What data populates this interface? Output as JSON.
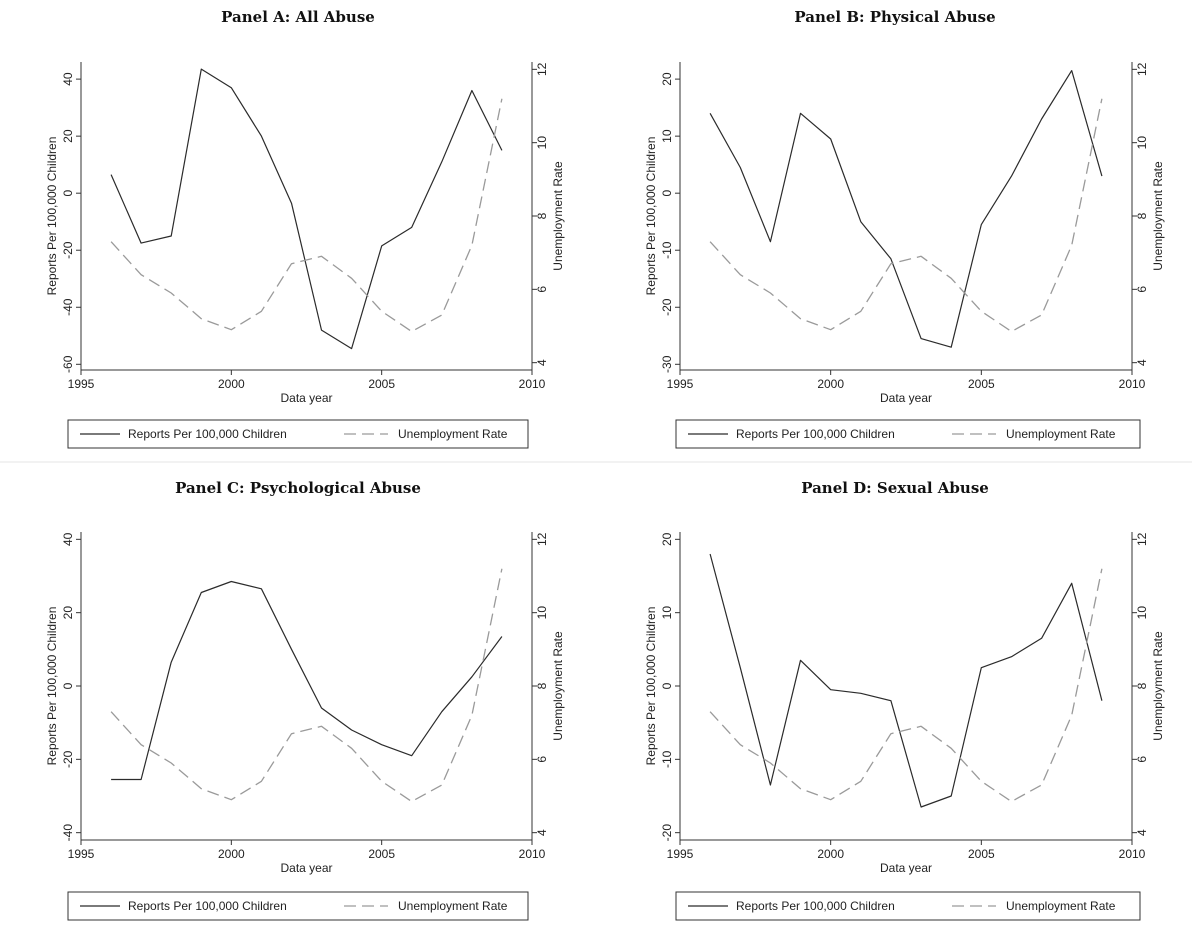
{
  "colors": {
    "reports_line": "#2b2b2b",
    "unemployment_line": "#9a9a9a",
    "axis": "#333333",
    "panel_divider": "#e6e6e6"
  },
  "chart_data": [
    {
      "type": "line",
      "title": "Panel A: All Abuse",
      "xlabel": "Data year",
      "ylabel": "Reports Per 100,000 Children",
      "y2label": "Unemployment Rate",
      "xlim": [
        1995,
        2010
      ],
      "xticks": [
        "1995",
        "2000",
        "2005",
        "2010"
      ],
      "ylim": [
        -62,
        46
      ],
      "yticks": [
        "40",
        "20",
        "0",
        "-20",
        "-40",
        "-60"
      ],
      "y2lim": [
        3.8,
        12.2
      ],
      "y2ticks": [
        "12",
        "10",
        "8",
        "6",
        "4"
      ],
      "x": [
        1996,
        1997,
        1998,
        1999,
        2000,
        2001,
        2002,
        2003,
        2004,
        2005,
        2006,
        2007,
        2008,
        2009
      ],
      "series": [
        {
          "name": "Reports Per 100,000 Children",
          "axis": "left",
          "style": "solid",
          "values": [
            6.5,
            -17.5,
            -15,
            43.5,
            37,
            20,
            -3.5,
            -48,
            -54.5,
            -18.5,
            -12,
            11,
            36,
            15
          ]
        },
        {
          "name": "Unemployment Rate",
          "axis": "right",
          "style": "dashed",
          "values": [
            7.3,
            6.4,
            5.9,
            5.2,
            4.9,
            5.4,
            6.7,
            6.9,
            6.3,
            5.4,
            4.85,
            5.3,
            7.2,
            11.2
          ]
        }
      ],
      "legend": {
        "position": "bottom",
        "items": [
          "Reports Per 100,000 Children",
          "Unemployment Rate"
        ]
      }
    },
    {
      "type": "line",
      "title": "Panel B: Physical Abuse",
      "xlabel": "Data year",
      "ylabel": "Reports Per 100,000 Children",
      "y2label": "Unemployment Rate",
      "xlim": [
        1995,
        2010
      ],
      "xticks": [
        "1995",
        "2000",
        "2005",
        "2010"
      ],
      "ylim": [
        -31,
        23
      ],
      "yticks": [
        "20",
        "10",
        "0",
        "-10",
        "-20",
        "-30"
      ],
      "y2lim": [
        3.8,
        12.2
      ],
      "y2ticks": [
        "12",
        "10",
        "8",
        "6",
        "4"
      ],
      "x": [
        1996,
        1997,
        1998,
        1999,
        2000,
        2001,
        2002,
        2003,
        2004,
        2005,
        2006,
        2007,
        2008,
        2009
      ],
      "series": [
        {
          "name": "Reports Per 100,000 Children",
          "axis": "left",
          "style": "solid",
          "values": [
            14,
            4.5,
            -8.5,
            14,
            9.5,
            -5,
            -11.5,
            -25.5,
            -27,
            -5.5,
            3,
            13,
            21.5,
            3
          ]
        },
        {
          "name": "Unemployment Rate",
          "axis": "right",
          "style": "dashed",
          "values": [
            7.3,
            6.4,
            5.9,
            5.2,
            4.9,
            5.4,
            6.7,
            6.9,
            6.3,
            5.4,
            4.85,
            5.3,
            7.2,
            11.2
          ]
        }
      ],
      "legend": {
        "position": "bottom",
        "items": [
          "Reports Per 100,000 Children",
          "Unemployment Rate"
        ]
      }
    },
    {
      "type": "line",
      "title": "Panel C: Psychological Abuse",
      "xlabel": "Data year",
      "ylabel": "Reports Per 100,000 Children",
      "y2label": "Unemployment Rate",
      "xlim": [
        1995,
        2010
      ],
      "xticks": [
        "1995",
        "2000",
        "2005",
        "2010"
      ],
      "ylim": [
        -42,
        42
      ],
      "yticks": [
        "40",
        "20",
        "0",
        "-20",
        "-40"
      ],
      "y2lim": [
        3.8,
        12.2
      ],
      "y2ticks": [
        "12",
        "10",
        "8",
        "6",
        "4"
      ],
      "x": [
        1996,
        1997,
        1998,
        1999,
        2000,
        2001,
        2002,
        2003,
        2004,
        2005,
        2006,
        2007,
        2008,
        2009
      ],
      "series": [
        {
          "name": "Reports Per 100,000 Children",
          "axis": "left",
          "style": "solid",
          "values": [
            -25.5,
            -25.5,
            6.5,
            25.5,
            28.5,
            26.5,
            10,
            -6,
            -12,
            -16,
            -19,
            -7,
            2.5,
            13.5
          ]
        },
        {
          "name": "Unemployment Rate",
          "axis": "right",
          "style": "dashed",
          "values": [
            7.3,
            6.4,
            5.9,
            5.2,
            4.9,
            5.4,
            6.7,
            6.9,
            6.3,
            5.4,
            4.85,
            5.3,
            7.2,
            11.2
          ]
        }
      ],
      "legend": {
        "position": "bottom",
        "items": [
          "Reports Per 100,000 Children",
          "Unemployment Rate"
        ]
      }
    },
    {
      "type": "line",
      "title": "Panel D: Sexual Abuse",
      "xlabel": "Data year",
      "ylabel": "Reports Per 100,000 Children",
      "y2label": "Unemployment Rate",
      "xlim": [
        1995,
        2010
      ],
      "xticks": [
        "1995",
        "2000",
        "2005",
        "2010"
      ],
      "ylim": [
        -21,
        21
      ],
      "yticks": [
        "20",
        "10",
        "0",
        "-10",
        "-20"
      ],
      "y2lim": [
        3.8,
        12.2
      ],
      "y2ticks": [
        "12",
        "10",
        "8",
        "6",
        "4"
      ],
      "x": [
        1996,
        1997,
        1998,
        1999,
        2000,
        2001,
        2002,
        2003,
        2004,
        2005,
        2006,
        2007,
        2008,
        2009
      ],
      "series": [
        {
          "name": "Reports Per 100,000 Children",
          "axis": "left",
          "style": "solid",
          "values": [
            18,
            2.5,
            -13.5,
            3.5,
            -0.5,
            -1,
            -2,
            -16.5,
            -15,
            2.5,
            4,
            6.5,
            14,
            -2
          ]
        },
        {
          "name": "Unemployment Rate",
          "axis": "right",
          "style": "dashed",
          "values": [
            7.3,
            6.4,
            5.9,
            5.2,
            4.9,
            5.4,
            6.7,
            6.9,
            6.3,
            5.4,
            4.85,
            5.3,
            7.2,
            11.2
          ]
        }
      ],
      "legend": {
        "position": "bottom",
        "items": [
          "Reports Per 100,000 Children",
          "Unemployment Rate"
        ]
      }
    }
  ]
}
